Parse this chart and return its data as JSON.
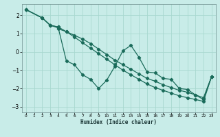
{
  "xlabel": "Humidex (Indice chaleur)",
  "bg_color": "#c8ece8",
  "grid_color": "#a8d8d0",
  "line_color": "#1a6b5a",
  "xlim": [
    -0.5,
    23.5
  ],
  "ylim": [
    -3.3,
    2.6
  ],
  "xticks": [
    0,
    1,
    2,
    3,
    4,
    5,
    6,
    7,
    8,
    9,
    10,
    11,
    12,
    13,
    14,
    15,
    16,
    17,
    18,
    19,
    20,
    21,
    22,
    23
  ],
  "yticks": [
    -3,
    -2,
    -1,
    0,
    1,
    2
  ],
  "series": [
    {
      "x": [
        0,
        2,
        3,
        4,
        4,
        5,
        6,
        7,
        8,
        9,
        10,
        11,
        12,
        13,
        14,
        15,
        16,
        17,
        18,
        19,
        20,
        21,
        22,
        23
      ],
      "y": [
        2.3,
        1.85,
        1.45,
        1.35,
        1.25,
        1.1,
        0.9,
        0.7,
        0.45,
        0.15,
        -0.15,
        -0.45,
        -0.7,
        -0.95,
        -1.2,
        -1.45,
        -1.6,
        -1.8,
        -1.95,
        -2.1,
        -2.2,
        -2.35,
        -2.5,
        -1.35
      ]
    },
    {
      "x": [
        0,
        2,
        3,
        4,
        5,
        6,
        7,
        8,
        9,
        10,
        11,
        12,
        13,
        14,
        15,
        16,
        17,
        18,
        19,
        20,
        21,
        22,
        23
      ],
      "y": [
        2.3,
        1.85,
        1.45,
        1.3,
        -0.5,
        -0.7,
        -1.25,
        -1.5,
        -2.0,
        -1.55,
        -0.8,
        0.05,
        0.35,
        -0.3,
        -1.1,
        -1.15,
        -1.45,
        -1.5,
        -2.0,
        -2.05,
        -2.35,
        -2.6,
        -1.35
      ]
    },
    {
      "x": [
        0,
        2,
        3,
        4,
        5,
        6,
        7,
        8,
        9,
        10,
        11,
        12,
        13,
        14,
        15,
        16,
        17,
        18,
        19,
        20,
        21,
        22,
        23
      ],
      "y": [
        2.3,
        1.85,
        1.45,
        1.35,
        1.1,
        0.8,
        0.5,
        0.2,
        -0.1,
        -0.4,
        -0.7,
        -1.0,
        -1.25,
        -1.5,
        -1.75,
        -1.95,
        -2.1,
        -2.25,
        -2.4,
        -2.5,
        -2.6,
        -2.7,
        -1.35
      ]
    }
  ]
}
